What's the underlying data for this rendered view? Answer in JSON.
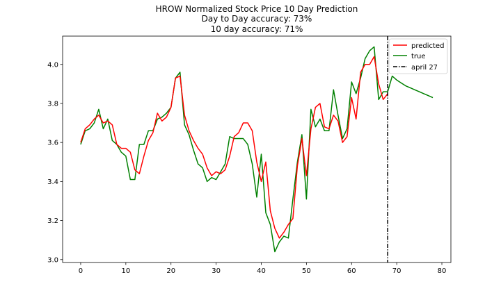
{
  "chart_data": {
    "type": "line",
    "title": "HROW Normalized Stock Price 10 Day Prediction",
    "subtitle_lines": [
      "Day to Day accuracy: 73%",
      "10 day accuracy: 71%"
    ],
    "xlabel": "",
    "ylabel": "",
    "xlim": [
      -4,
      82
    ],
    "ylim": [
      2.985,
      4.145
    ],
    "xticks": [
      0,
      10,
      20,
      30,
      40,
      50,
      60,
      70,
      80
    ],
    "yticks": [
      3.0,
      3.2,
      3.4,
      3.6,
      3.8,
      4.0
    ],
    "ytick_labels": [
      "3.0",
      "3.2",
      "3.4",
      "3.6",
      "3.8",
      "4.0"
    ],
    "grid": false,
    "legend_position": "top-right",
    "series": [
      {
        "name": "predicted",
        "color": "#ff0000",
        "x": [
          0,
          1,
          2,
          3,
          4,
          5,
          6,
          7,
          8,
          9,
          10,
          11,
          12,
          13,
          14,
          15,
          16,
          17,
          18,
          19,
          20,
          21,
          22,
          23,
          24,
          25,
          26,
          27,
          28,
          29,
          30,
          31,
          32,
          33,
          34,
          35,
          36,
          37,
          38,
          39,
          40,
          41,
          42,
          43,
          44,
          45,
          46,
          47,
          48,
          49,
          50,
          51,
          52,
          53,
          54,
          55,
          56,
          57,
          58,
          59,
          60,
          61,
          62,
          63,
          64,
          65,
          66,
          67,
          68
        ],
        "y": [
          3.6,
          3.67,
          3.69,
          3.72,
          3.74,
          3.7,
          3.71,
          3.69,
          3.59,
          3.57,
          3.57,
          3.55,
          3.46,
          3.44,
          3.53,
          3.61,
          3.65,
          3.75,
          3.71,
          3.73,
          3.78,
          3.93,
          3.94,
          3.74,
          3.66,
          3.61,
          3.57,
          3.54,
          3.47,
          3.43,
          3.45,
          3.44,
          3.46,
          3.53,
          3.63,
          3.65,
          3.7,
          3.7,
          3.66,
          3.5,
          3.4,
          3.5,
          3.25,
          3.16,
          3.11,
          3.14,
          3.18,
          3.21,
          3.48,
          3.62,
          3.43,
          3.67,
          3.78,
          3.8,
          3.68,
          3.67,
          3.74,
          3.71,
          3.6,
          3.63,
          3.83,
          3.72,
          3.96,
          4.0,
          4.0,
          4.04,
          3.9,
          3.82,
          3.85
        ]
      },
      {
        "name": "true",
        "color": "#008000",
        "x": [
          0,
          1,
          2,
          3,
          4,
          5,
          6,
          7,
          8,
          9,
          10,
          11,
          12,
          13,
          14,
          15,
          16,
          17,
          18,
          19,
          20,
          21,
          22,
          23,
          24,
          25,
          26,
          27,
          28,
          29,
          30,
          31,
          32,
          33,
          34,
          35,
          36,
          37,
          38,
          39,
          40,
          41,
          42,
          43,
          44,
          45,
          46,
          47,
          48,
          49,
          50,
          51,
          52,
          53,
          54,
          55,
          56,
          57,
          58,
          59,
          60,
          61,
          62,
          63,
          64,
          65,
          66,
          67,
          68,
          69,
          70,
          71,
          72,
          73,
          74,
          75,
          76,
          77,
          78
        ],
        "y": [
          3.59,
          3.66,
          3.67,
          3.7,
          3.77,
          3.67,
          3.72,
          3.61,
          3.59,
          3.55,
          3.53,
          3.41,
          3.41,
          3.59,
          3.59,
          3.66,
          3.66,
          3.72,
          3.73,
          3.75,
          3.78,
          3.93,
          3.96,
          3.69,
          3.64,
          3.56,
          3.49,
          3.47,
          3.4,
          3.42,
          3.41,
          3.45,
          3.49,
          3.63,
          3.62,
          3.62,
          3.62,
          3.59,
          3.49,
          3.32,
          3.54,
          3.24,
          3.18,
          3.04,
          3.09,
          3.12,
          3.11,
          3.31,
          3.5,
          3.64,
          3.31,
          3.77,
          3.68,
          3.72,
          3.66,
          3.66,
          3.87,
          3.74,
          3.62,
          3.67,
          3.91,
          3.85,
          3.93,
          4.03,
          4.07,
          4.09,
          3.82,
          3.86,
          3.86,
          3.94,
          3.92,
          3.905,
          3.89,
          3.88,
          3.87,
          3.86,
          3.85,
          3.84,
          3.83
        ]
      }
    ],
    "annotations": [
      {
        "type": "vline",
        "x": 68,
        "label": "april 27",
        "color": "#000000",
        "style": "dashdot"
      }
    ]
  }
}
